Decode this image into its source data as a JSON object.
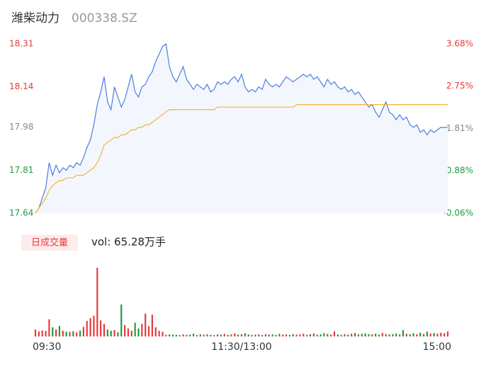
{
  "chart_data": {
    "type": "line",
    "title": "潍柴动力",
    "code": "000338.SZ",
    "xlim": [
      0,
      240
    ],
    "xticks": [
      {
        "value": 0,
        "label": "09:30"
      },
      {
        "value": 120,
        "label": "11:30/13:00"
      },
      {
        "value": 240,
        "label": "15:00"
      }
    ],
    "ylim": [
      17.64,
      18.31
    ],
    "yticks": [
      17.64,
      17.81,
      17.98,
      18.14,
      18.31
    ],
    "ytick_colors": [
      "#1a9c3c",
      "#1a9c3c",
      "#888888",
      "#e63a3a",
      "#e63a3a"
    ],
    "y2lim": [
      -0.06,
      3.68
    ],
    "y2ticks": [
      {
        "value": -0.06,
        "label": "-0.06%"
      },
      {
        "value": 0.88,
        "label": "0.88%"
      },
      {
        "value": 1.81,
        "label": "1.81%"
      },
      {
        "value": 2.75,
        "label": "2.75%"
      },
      {
        "value": 3.68,
        "label": "3.68%"
      }
    ],
    "x": [
      0,
      2,
      4,
      6,
      8,
      10,
      12,
      14,
      16,
      18,
      20,
      22,
      24,
      26,
      28,
      30,
      32,
      34,
      36,
      38,
      40,
      42,
      44,
      46,
      48,
      50,
      52,
      54,
      56,
      58,
      60,
      62,
      64,
      66,
      68,
      70,
      72,
      74,
      76,
      78,
      80,
      82,
      84,
      86,
      88,
      90,
      92,
      94,
      96,
      98,
      100,
      102,
      104,
      106,
      108,
      110,
      112,
      114,
      116,
      118,
      120,
      122,
      124,
      126,
      128,
      130,
      132,
      134,
      136,
      138,
      140,
      142,
      144,
      146,
      148,
      150,
      152,
      154,
      156,
      158,
      160,
      162,
      164,
      166,
      168,
      170,
      172,
      174,
      176,
      178,
      180,
      182,
      184,
      186,
      188,
      190,
      192,
      194,
      196,
      198,
      200,
      202,
      204,
      206,
      208,
      210,
      212,
      214,
      216,
      218,
      220,
      222,
      224,
      226,
      228,
      230,
      232,
      234,
      236,
      238,
      240
    ],
    "series": [
      {
        "name": "price",
        "color": "#4a7fe0",
        "values": [
          17.64,
          17.66,
          17.7,
          17.74,
          17.84,
          17.79,
          17.83,
          17.8,
          17.82,
          17.81,
          17.83,
          17.82,
          17.84,
          17.83,
          17.86,
          17.9,
          17.93,
          17.99,
          18.07,
          18.12,
          18.18,
          18.08,
          18.05,
          18.14,
          18.1,
          18.06,
          18.09,
          18.14,
          18.19,
          18.12,
          18.1,
          18.14,
          18.15,
          18.18,
          18.2,
          18.24,
          18.27,
          18.3,
          18.31,
          18.22,
          18.18,
          18.16,
          18.19,
          18.22,
          18.17,
          18.15,
          18.13,
          18.15,
          18.14,
          18.13,
          18.15,
          18.12,
          18.13,
          18.16,
          18.15,
          18.16,
          18.15,
          18.17,
          18.18,
          18.16,
          18.19,
          18.14,
          18.12,
          18.13,
          18.12,
          18.14,
          18.13,
          18.17,
          18.15,
          18.14,
          18.15,
          18.14,
          18.16,
          18.18,
          18.17,
          18.16,
          18.17,
          18.18,
          18.19,
          18.18,
          18.19,
          18.17,
          18.18,
          18.16,
          18.14,
          18.17,
          18.15,
          18.16,
          18.14,
          18.13,
          18.14,
          18.12,
          18.13,
          18.11,
          18.12,
          18.1,
          18.08,
          18.06,
          18.07,
          18.04,
          18.02,
          18.05,
          18.08,
          18.04,
          18.03,
          18.01,
          18.03,
          18.01,
          18.02,
          17.99,
          17.98,
          17.99,
          17.96,
          17.97,
          17.95,
          17.97,
          17.96,
          17.97,
          17.98,
          17.98,
          17.98
        ]
      },
      {
        "name": "average",
        "color": "#f2b63a",
        "values": [
          17.64,
          17.66,
          17.68,
          17.7,
          17.73,
          17.75,
          17.76,
          17.77,
          17.77,
          17.78,
          17.78,
          17.78,
          17.79,
          17.79,
          17.79,
          17.8,
          17.81,
          17.82,
          17.84,
          17.87,
          17.91,
          17.92,
          17.93,
          17.94,
          17.94,
          17.95,
          17.95,
          17.96,
          17.97,
          17.97,
          17.98,
          17.98,
          17.99,
          17.99,
          18.0,
          18.01,
          18.02,
          18.03,
          18.04,
          18.05,
          18.05,
          18.05,
          18.05,
          18.05,
          18.05,
          18.05,
          18.05,
          18.05,
          18.05,
          18.05,
          18.05,
          18.05,
          18.05,
          18.06,
          18.06,
          18.06,
          18.06,
          18.06,
          18.06,
          18.06,
          18.06,
          18.06,
          18.06,
          18.06,
          18.06,
          18.06,
          18.06,
          18.06,
          18.06,
          18.06,
          18.06,
          18.06,
          18.06,
          18.06,
          18.06,
          18.06,
          18.07,
          18.07,
          18.07,
          18.07,
          18.07,
          18.07,
          18.07,
          18.07,
          18.07,
          18.07,
          18.07,
          18.07,
          18.07,
          18.07,
          18.07,
          18.07,
          18.07,
          18.07,
          18.07,
          18.07,
          18.07,
          18.07,
          18.07,
          18.07,
          18.07,
          18.07,
          18.07,
          18.07,
          18.07,
          18.07,
          18.07,
          18.07,
          18.07,
          18.07,
          18.07,
          18.07,
          18.07,
          18.07,
          18.07,
          18.07,
          18.07,
          18.07,
          18.07,
          18.07,
          18.07
        ]
      }
    ],
    "volume_tab": "日成交量",
    "volume_label": "vol: 65.28万手",
    "up_color": "#e63a3a",
    "down_color": "#1a9c3c",
    "volume": [
      3000,
      2200,
      2600,
      2400,
      7500,
      4000,
      3000,
      4600,
      2500,
      2100,
      2000,
      2300,
      1800,
      2600,
      4200,
      6800,
      8000,
      9000,
      30000,
      7000,
      5500,
      3000,
      2500,
      2800,
      1800,
      14000,
      5000,
      3500,
      2500,
      6000,
      3500,
      5500,
      10000,
      4500,
      9500,
      4000,
      2500,
      2000,
      700,
      900,
      800,
      700,
      600,
      900,
      700,
      800,
      1200,
      600,
      900,
      800,
      1000,
      700,
      600,
      900,
      800,
      1100,
      700,
      900,
      1300,
      800,
      1000,
      1400,
      900,
      700,
      800,
      900,
      600,
      1000,
      800,
      900,
      700,
      1100,
      800,
      900,
      700,
      1000,
      800,
      900,
      1200,
      700,
      1000,
      1300,
      800,
      900,
      1400,
      1100,
      800,
      2200,
      900,
      700,
      1000,
      800,
      1200,
      1500,
      900,
      1100,
      1300,
      1000,
      900,
      1200,
      800,
      1500,
      1100,
      900,
      1000,
      1300,
      900,
      2800,
      1200,
      1000,
      1400,
      900,
      1600,
      1100,
      2100,
      1300,
      1500,
      1200,
      1600,
      1400,
      2200
    ]
  }
}
